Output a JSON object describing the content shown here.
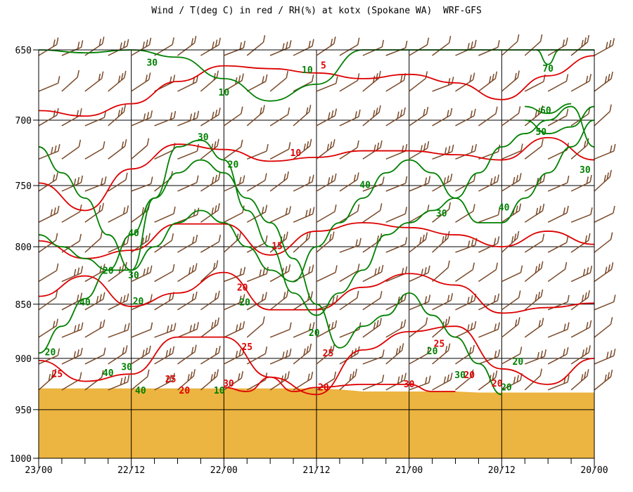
{
  "chart_data": {
    "type": "line",
    "title": "Wind / T(deg C) in red / RH(%) at kotx (Spokane WA)  WRF-GFS",
    "xlabel": "",
    "ylabel": "",
    "x_tick_labels": [
      "23/00",
      "22/12",
      "22/00",
      "21/12",
      "21/00",
      "20/12",
      "20/00"
    ],
    "y_ticks": [
      650,
      700,
      750,
      800,
      850,
      900,
      950,
      1000
    ],
    "y_tick_labels": [
      "650",
      "700",
      "750",
      "800",
      "850",
      "900",
      "950",
      "1000"
    ],
    "ylim": [
      1000,
      650
    ],
    "y_scale": "log-pressure",
    "x_steps": 24,
    "grid": true,
    "series": [
      {
        "kind": "temperature-contour",
        "color": "#dd0000",
        "contours": [
          {
            "level": 5,
            "x": [
              0,
              2,
              4,
              6,
              8,
              10,
              12,
              14,
              16,
              18,
              20,
              22,
              24
            ],
            "y": [
              693,
              697,
              688,
              672,
              661,
              663,
              666,
              670,
              667,
              673,
              685,
              668,
              654
            ]
          },
          {
            "level": 10,
            "x": [
              0,
              2,
              4,
              6,
              8,
              10,
              12,
              14,
              16,
              18,
              20,
              22,
              24
            ],
            "y": [
              748,
              770,
              737,
              718,
              722,
              731,
              728,
              723,
              723,
              726,
              730,
              713,
              730
            ]
          },
          {
            "level": 15,
            "x": [
              0,
              2,
              4,
              6,
              8,
              10,
              12,
              14,
              16,
              18,
              20,
              22,
              24
            ],
            "y": [
              795,
              810,
              803,
              781,
              781,
              807,
              787,
              780,
              784,
              790,
              800,
              787,
              798
            ]
          },
          {
            "level": 20,
            "x": [
              0,
              2,
              4,
              6,
              8,
              10,
              12,
              14,
              16,
              18,
              20,
              22,
              24
            ],
            "y": [
              843,
              825,
              852,
              840,
              822,
              855,
              855,
              835,
              823,
              833,
              858,
              853,
              849
            ]
          },
          {
            "level": 25,
            "x": [
              0,
              2,
              4,
              6,
              8,
              10,
              12,
              14,
              16,
              18,
              20,
              22,
              24
            ],
            "y": [
              902,
              922,
              915,
              880,
              880,
              918,
              935,
              892,
              875,
              870,
              910,
              925,
              900
            ]
          },
          {
            "level": 30,
            "x": [
              8,
              9,
              10,
              11,
              12,
              14,
              16,
              17,
              18
            ],
            "y": [
              928,
              932,
              918,
              932,
              928,
              925,
              925,
              932,
              932
            ]
          }
        ],
        "labels": [
          {
            "text": "5",
            "x": 12.3,
            "y": 663
          },
          {
            "text": "10",
            "x": 11.1,
            "y": 727
          },
          {
            "text": "15",
            "x": 10.3,
            "y": 802
          },
          {
            "text": "20",
            "x": 8.8,
            "y": 838
          },
          {
            "text": "25",
            "x": 0.8,
            "y": 918
          },
          {
            "text": "25",
            "x": 5.7,
            "y": 923
          },
          {
            "text": "25",
            "x": 9.0,
            "y": 892
          },
          {
            "text": "25",
            "x": 12.5,
            "y": 898
          },
          {
            "text": "25",
            "x": 17.3,
            "y": 889
          },
          {
            "text": "30",
            "x": 8.2,
            "y": 927
          },
          {
            "text": "30",
            "x": 16.0,
            "y": 928
          },
          {
            "text": "20",
            "x": 12.3,
            "y": 931
          },
          {
            "text": "20",
            "x": 18.6,
            "y": 919
          },
          {
            "text": "20",
            "x": 19.8,
            "y": 927
          },
          {
            "text": "20",
            "x": 6.3,
            "y": 934
          }
        ]
      },
      {
        "kind": "rh-contour",
        "color": "#008000",
        "contours": [
          {
            "level": 10,
            "x": [
              0,
              2,
              4,
              6,
              8,
              10,
              12,
              14,
              16,
              18,
              20,
              22,
              24
            ],
            "y": [
              650,
              652,
              650,
              655,
              670,
              686,
              674,
              650,
              650,
              650,
              650,
              650,
              650
            ]
          },
          {
            "level": 20,
            "x": [
              0,
              1,
              2,
              3,
              4,
              5,
              6,
              7,
              8,
              9,
              10,
              11,
              12,
              13,
              14,
              15,
              16,
              17,
              18,
              19,
              20
            ],
            "y": [
              895,
              870,
              845,
              820,
              790,
              760,
              740,
              730,
              740,
              760,
              780,
              810,
              850,
              890,
              870,
              860,
              840,
              860,
              880,
              905,
              935
            ]
          },
          {
            "level": 30,
            "x": [
              0,
              1,
              2,
              3,
              4,
              5,
              6,
              7,
              8,
              9,
              10,
              11,
              12,
              13,
              14,
              15,
              16,
              17,
              18,
              19,
              20,
              21,
              22,
              23,
              24
            ],
            "y": [
              790,
              800,
              810,
              820,
              820,
              760,
              720,
              715,
              730,
              770,
              800,
              840,
              860,
              840,
              820,
              790,
              780,
              770,
              760,
              740,
              720,
              710,
              700,
              690,
              720
            ]
          },
          {
            "level": 40,
            "x": [
              0,
              1,
              2,
              3,
              4,
              5,
              6,
              7,
              8,
              9,
              10,
              11,
              12,
              13,
              14,
              15,
              16,
              17,
              18,
              19,
              20,
              21,
              22,
              23,
              24
            ],
            "y": [
              720,
              740,
              760,
              790,
              820,
              800,
              780,
              770,
              780,
              800,
              820,
              830,
              800,
              780,
              760,
              740,
              730,
              740,
              760,
              780,
              780,
              760,
              740,
              720,
              700
            ]
          },
          {
            "level": 50,
            "x": [
              21,
              22,
              23,
              24
            ],
            "y": [
              700,
              710,
              705,
              690
            ]
          },
          {
            "level": 60,
            "x": [
              21,
              22,
              23
            ],
            "y": [
              690,
              695,
              688
            ]
          },
          {
            "level": 70,
            "x": [
              21.5,
              22,
              22.5
            ],
            "y": [
              650,
              660,
              650
            ]
          }
        ],
        "labels": [
          {
            "text": "30",
            "x": 4.9,
            "y": 661
          },
          {
            "text": "10",
            "x": 8.0,
            "y": 682
          },
          {
            "text": "10",
            "x": 11.6,
            "y": 666
          },
          {
            "text": "30",
            "x": 7.1,
            "y": 715
          },
          {
            "text": "20",
            "x": 8.4,
            "y": 736
          },
          {
            "text": "40",
            "x": 14.1,
            "y": 752
          },
          {
            "text": "70",
            "x": 22.0,
            "y": 665
          },
          {
            "text": "60",
            "x": 21.9,
            "y": 695
          },
          {
            "text": "50",
            "x": 21.7,
            "y": 711
          },
          {
            "text": "30",
            "x": 23.6,
            "y": 740
          },
          {
            "text": "30",
            "x": 17.4,
            "y": 775
          },
          {
            "text": "40",
            "x": 20.1,
            "y": 770
          },
          {
            "text": "40",
            "x": 4.1,
            "y": 791
          },
          {
            "text": "20",
            "x": 3.0,
            "y": 823
          },
          {
            "text": "30",
            "x": 4.1,
            "y": 827
          },
          {
            "text": "40",
            "x": 2.0,
            "y": 851
          },
          {
            "text": "20",
            "x": 4.3,
            "y": 850
          },
          {
            "text": "20",
            "x": 8.9,
            "y": 851
          },
          {
            "text": "20",
            "x": 11.9,
            "y": 879
          },
          {
            "text": "20",
            "x": 0.5,
            "y": 897
          },
          {
            "text": "40",
            "x": 3.0,
            "y": 917
          },
          {
            "text": "30",
            "x": 3.8,
            "y": 911
          },
          {
            "text": "10",
            "x": 7.8,
            "y": 934
          },
          {
            "text": "40",
            "x": 4.4,
            "y": 934
          },
          {
            "text": "20",
            "x": 17.0,
            "y": 896
          },
          {
            "text": "30",
            "x": 18.2,
            "y": 919
          },
          {
            "text": "20",
            "x": 20.2,
            "y": 931
          },
          {
            "text": "20",
            "x": 20.7,
            "y": 906
          }
        ]
      },
      {
        "kind": "wind-barbs",
        "color": "#7a4a2a",
        "columns": 25,
        "levels": [
          650,
          675,
          700,
          725,
          750,
          775,
          800,
          825,
          850,
          875,
          900,
          925,
          950,
          975
        ]
      }
    ],
    "surface": {
      "color": "#ecb440",
      "y": [
        929,
        929,
        929,
        929,
        929,
        929,
        929,
        929,
        929,
        929,
        929,
        929,
        929,
        930,
        932,
        932,
        932,
        932,
        932,
        933,
        933,
        933,
        933,
        933,
        933
      ]
    }
  }
}
